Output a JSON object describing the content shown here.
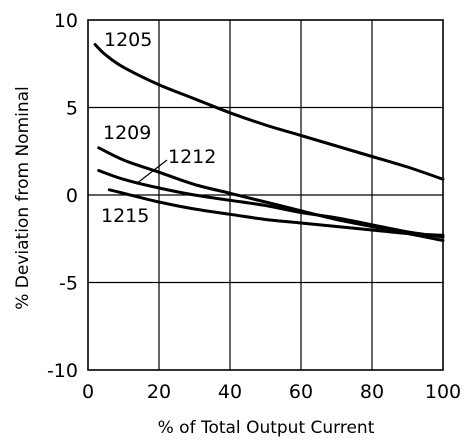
{
  "chart_data": {
    "type": "line",
    "title": "",
    "xlabel": "% of Total Output Current",
    "ylabel": "% Deviation from Nominal",
    "xlim": [
      0,
      100
    ],
    "ylim": [
      -10,
      10
    ],
    "grid": true,
    "x_ticks": [
      0,
      20,
      40,
      60,
      80,
      100
    ],
    "y_ticks": [
      -10,
      -5,
      0,
      5,
      10
    ],
    "x_tick_labels": [
      "0",
      "20",
      "40",
      "60",
      "80",
      "100"
    ],
    "y_tick_labels": [
      "-10",
      "-5",
      "0",
      "5",
      "10"
    ],
    "series": [
      {
        "name": "1205",
        "x": [
          2,
          5,
          10,
          20,
          30,
          40,
          50,
          60,
          70,
          80,
          90,
          100
        ],
        "y": [
          8.6,
          8.0,
          7.3,
          6.3,
          5.5,
          4.7,
          4.0,
          3.4,
          2.8,
          2.2,
          1.6,
          0.9
        ]
      },
      {
        "name": "1209",
        "x": [
          3,
          10,
          20,
          30,
          40,
          50,
          60,
          70,
          80,
          90,
          100
        ],
        "y": [
          2.7,
          2.0,
          1.3,
          0.6,
          0.1,
          -0.4,
          -0.9,
          -1.4,
          -1.8,
          -2.2,
          -2.6
        ]
      },
      {
        "name": "1212",
        "x": [
          3,
          10,
          20,
          30,
          40,
          50,
          60,
          70,
          80,
          90,
          100
        ],
        "y": [
          1.4,
          0.9,
          0.4,
          0.0,
          -0.3,
          -0.6,
          -1.0,
          -1.3,
          -1.7,
          -2.1,
          -2.4
        ]
      },
      {
        "name": "1215",
        "x": [
          6,
          10,
          20,
          30,
          40,
          50,
          60,
          70,
          80,
          90,
          100
        ],
        "y": [
          0.3,
          0.1,
          -0.4,
          -0.8,
          -1.1,
          -1.4,
          -1.6,
          -1.8,
          -2.0,
          -2.2,
          -2.3
        ]
      }
    ]
  }
}
